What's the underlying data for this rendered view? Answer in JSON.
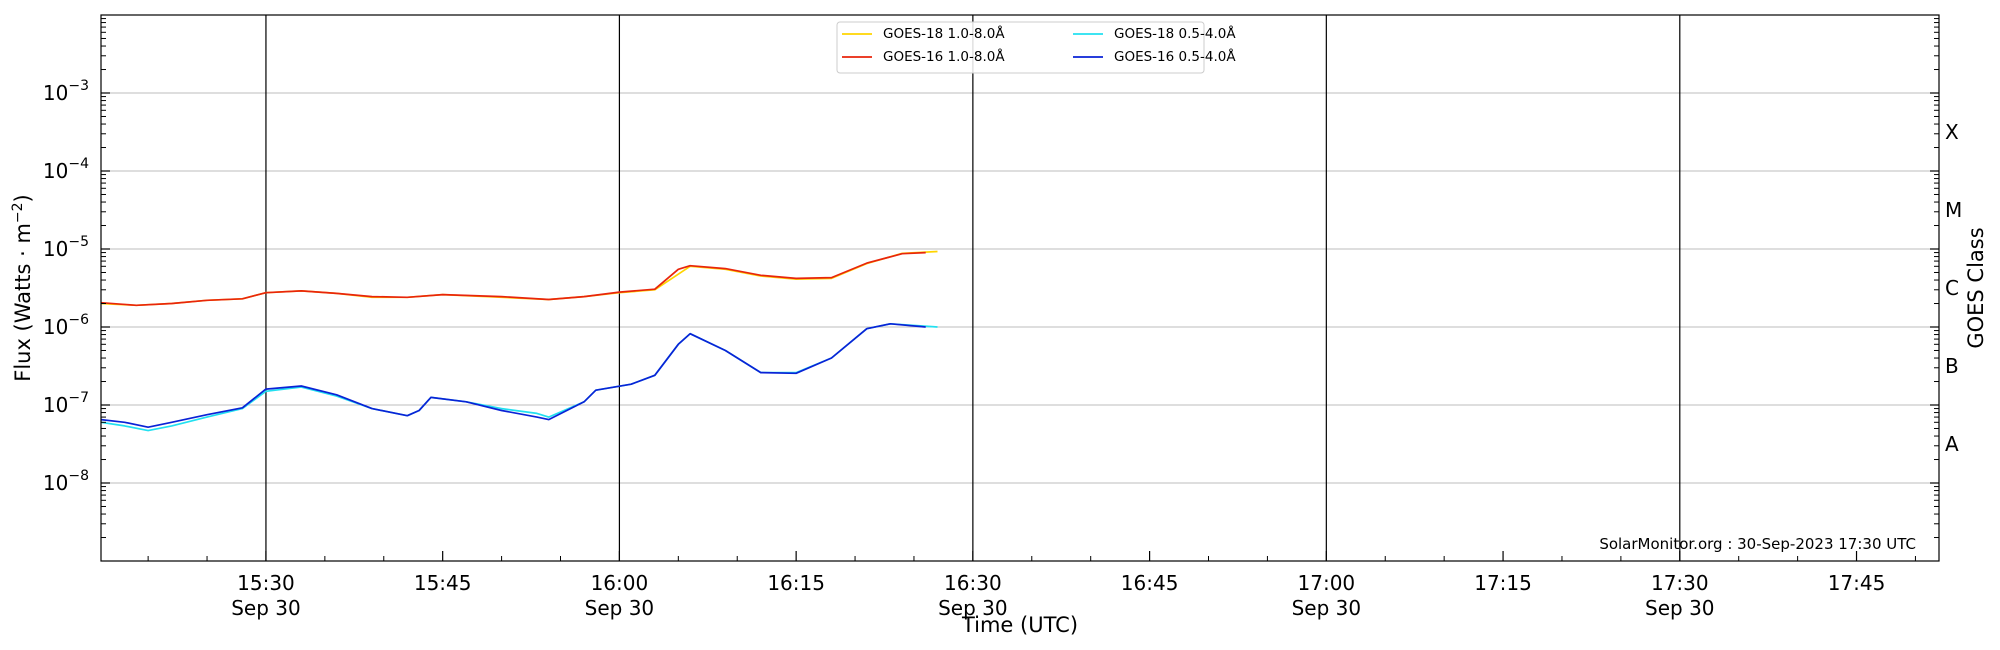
{
  "chart_data": {
    "type": "line",
    "xlabel": "Time (UTC)",
    "ylabel": "Flux (Watts · m",
    "ylabel_sup": "−2",
    "ylabel_close": ")",
    "right_axis_label": "GOES Class",
    "footer": "SolarMonitor.org : 30-Sep-2023 17:30 UTC",
    "y_scale": "log",
    "ylim": [
      1e-09,
      0.01
    ],
    "xlim": [
      "15:16",
      "17:52"
    ],
    "grid": "horizontal at decades, vertical at half-hour marks",
    "legend_placement": "top-center",
    "x_ticks": [
      {
        "time": "15:30",
        "label": "15:30",
        "date": "Sep 30"
      },
      {
        "time": "15:45",
        "label": "15:45",
        "date": ""
      },
      {
        "time": "16:00",
        "label": "16:00",
        "date": "Sep 30"
      },
      {
        "time": "16:15",
        "label": "16:15",
        "date": ""
      },
      {
        "time": "16:30",
        "label": "16:30",
        "date": "Sep 30"
      },
      {
        "time": "16:45",
        "label": "16:45",
        "date": ""
      },
      {
        "time": "17:00",
        "label": "17:00",
        "date": "Sep 30"
      },
      {
        "time": "17:15",
        "label": "17:15",
        "date": ""
      },
      {
        "time": "17:30",
        "label": "17:30",
        "date": "Sep 30"
      },
      {
        "time": "17:45",
        "label": "17:45",
        "date": ""
      }
    ],
    "y_ticks": [
      {
        "value": 1e-08,
        "base": "10",
        "exp": "−8"
      },
      {
        "value": 1e-07,
        "base": "10",
        "exp": "−7"
      },
      {
        "value": 1e-06,
        "base": "10",
        "exp": "−6"
      },
      {
        "value": 1e-05,
        "base": "10",
        "exp": "−5"
      },
      {
        "value": 0.0001,
        "base": "10",
        "exp": "−4"
      },
      {
        "value": 0.001,
        "base": "10",
        "exp": "−3"
      }
    ],
    "goes_classes": [
      {
        "label": "A",
        "value": 3.16e-08
      },
      {
        "label": "B",
        "value": 3.16e-07
      },
      {
        "label": "C",
        "value": 3.16e-06
      },
      {
        "label": "M",
        "value": 3.16e-05
      },
      {
        "label": "X",
        "value": 0.000316
      }
    ],
    "series": [
      {
        "name": "GOES-18 1.0-8.0Å",
        "color": "#ffd400",
        "points": [
          [
            "15:16",
            2e-06
          ],
          [
            "15:19",
            1.9e-06
          ],
          [
            "15:22",
            2e-06
          ],
          [
            "15:25",
            2.2e-06
          ],
          [
            "15:28",
            2.3e-06
          ],
          [
            "15:30",
            2.75e-06
          ],
          [
            "15:33",
            2.9e-06
          ],
          [
            "15:36",
            2.7e-06
          ],
          [
            "15:39",
            2.4e-06
          ],
          [
            "15:42",
            2.4e-06
          ],
          [
            "15:45",
            2.6e-06
          ],
          [
            "15:50",
            2.4e-06
          ],
          [
            "15:54",
            2.25e-06
          ],
          [
            "15:57",
            2.45e-06
          ],
          [
            "16:00",
            2.75e-06
          ],
          [
            "16:03",
            3e-06
          ],
          [
            "16:06",
            6e-06
          ],
          [
            "16:09",
            5.5e-06
          ],
          [
            "16:12",
            4.5e-06
          ],
          [
            "16:15",
            4.1e-06
          ],
          [
            "16:18",
            4.2e-06
          ],
          [
            "16:21",
            6.5e-06
          ],
          [
            "16:24",
            8.8e-06
          ],
          [
            "16:27",
            9.3e-06
          ]
        ]
      },
      {
        "name": "GOES-16 1.0-8.0Å",
        "color": "#e8250c",
        "points": [
          [
            "15:16",
            2.05e-06
          ],
          [
            "15:19",
            1.9e-06
          ],
          [
            "15:22",
            2e-06
          ],
          [
            "15:25",
            2.2e-06
          ],
          [
            "15:28",
            2.3e-06
          ],
          [
            "15:30",
            2.75e-06
          ],
          [
            "15:33",
            2.9e-06
          ],
          [
            "15:36",
            2.7e-06
          ],
          [
            "15:39",
            2.45e-06
          ],
          [
            "15:42",
            2.4e-06
          ],
          [
            "15:45",
            2.6e-06
          ],
          [
            "15:50",
            2.45e-06
          ],
          [
            "15:54",
            2.25e-06
          ],
          [
            "15:57",
            2.45e-06
          ],
          [
            "16:00",
            2.8e-06
          ],
          [
            "16:03",
            3.05e-06
          ],
          [
            "16:05",
            5.5e-06
          ],
          [
            "16:06",
            6.1e-06
          ],
          [
            "16:09",
            5.6e-06
          ],
          [
            "16:12",
            4.6e-06
          ],
          [
            "16:15",
            4.2e-06
          ],
          [
            "16:18",
            4.3e-06
          ],
          [
            "16:21",
            6.6e-06
          ],
          [
            "16:24",
            8.7e-06
          ],
          [
            "16:26",
            9e-06
          ]
        ]
      },
      {
        "name": "GOES-18 0.5-4.0Å",
        "color": "#22e0f0",
        "points": [
          [
            "15:16",
            6e-08
          ],
          [
            "15:18",
            5.4e-08
          ],
          [
            "15:20",
            4.7e-08
          ],
          [
            "15:22",
            5.4e-08
          ],
          [
            "15:25",
            7e-08
          ],
          [
            "15:28",
            9e-08
          ],
          [
            "15:30",
            1.5e-07
          ],
          [
            "15:33",
            1.7e-07
          ],
          [
            "15:36",
            1.3e-07
          ],
          [
            "15:39",
            9e-08
          ],
          [
            "15:42",
            7.3e-08
          ],
          [
            "15:43",
            8.5e-08
          ],
          [
            "15:44",
            1.25e-07
          ],
          [
            "15:47",
            1.1e-07
          ],
          [
            "15:50",
            9e-08
          ],
          [
            "15:53",
            7.8e-08
          ],
          [
            "15:54",
            7e-08
          ],
          [
            "15:57",
            1.1e-07
          ],
          [
            "15:58",
            1.55e-07
          ],
          [
            "16:01",
            1.85e-07
          ],
          [
            "16:03",
            2.4e-07
          ],
          [
            "16:05",
            6e-07
          ],
          [
            "16:06",
            8.2e-07
          ],
          [
            "16:09",
            5e-07
          ],
          [
            "16:12",
            2.6e-07
          ],
          [
            "16:15",
            2.6e-07
          ],
          [
            "16:18",
            4e-07
          ],
          [
            "16:21",
            9.5e-07
          ],
          [
            "16:23",
            1.1e-06
          ],
          [
            "16:27",
            1e-06
          ]
        ]
      },
      {
        "name": "GOES-16 0.5-4.0Å",
        "color": "#0a22d6",
        "points": [
          [
            "15:16",
            6.5e-08
          ],
          [
            "15:18",
            6e-08
          ],
          [
            "15:20",
            5.2e-08
          ],
          [
            "15:22",
            6e-08
          ],
          [
            "15:25",
            7.5e-08
          ],
          [
            "15:28",
            9.2e-08
          ],
          [
            "15:30",
            1.6e-07
          ],
          [
            "15:33",
            1.75e-07
          ],
          [
            "15:36",
            1.35e-07
          ],
          [
            "15:39",
            9e-08
          ],
          [
            "15:42",
            7.3e-08
          ],
          [
            "15:43",
            8.5e-08
          ],
          [
            "15:44",
            1.25e-07
          ],
          [
            "15:47",
            1.1e-07
          ],
          [
            "15:50",
            8.5e-08
          ],
          [
            "15:53",
            7e-08
          ],
          [
            "15:54",
            6.5e-08
          ],
          [
            "15:57",
            1.1e-07
          ],
          [
            "15:58",
            1.55e-07
          ],
          [
            "16:01",
            1.85e-07
          ],
          [
            "16:03",
            2.4e-07
          ],
          [
            "16:05",
            6e-07
          ],
          [
            "16:06",
            8.2e-07
          ],
          [
            "16:09",
            5e-07
          ],
          [
            "16:12",
            2.6e-07
          ],
          [
            "16:15",
            2.55e-07
          ],
          [
            "16:18",
            4e-07
          ],
          [
            "16:21",
            9.5e-07
          ],
          [
            "16:23",
            1.1e-06
          ],
          [
            "16:26",
            1e-06
          ]
        ]
      }
    ]
  }
}
